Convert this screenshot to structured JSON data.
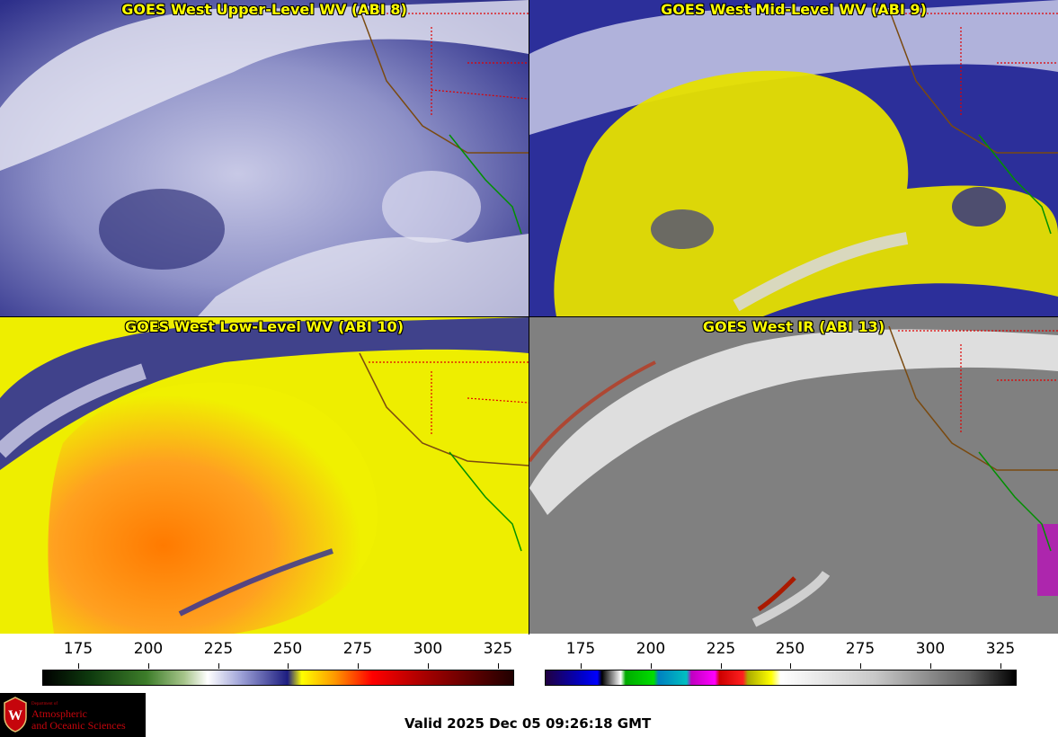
{
  "panels": [
    {
      "title": "GOES West Upper-Level WV (ABI 8)"
    },
    {
      "title": "GOES West Mid-Level WV (ABI 9)"
    },
    {
      "title": "GOES West Low-Level WV (ABI 10)"
    },
    {
      "title": "GOES West IR (ABI 13)"
    }
  ],
  "colorbars": {
    "wv": {
      "ticks": [
        "175",
        "200",
        "225",
        "250",
        "275",
        "300",
        "325"
      ]
    },
    "ir": {
      "ticks": [
        "175",
        "200",
        "225",
        "250",
        "275",
        "300",
        "325"
      ]
    }
  },
  "logo": {
    "dept_line": "Department of",
    "name_line1": "Atmospheric",
    "name_line2": "and Oceanic Sciences",
    "seal_letter": "W"
  },
  "valid_time": "Valid 2025 Dec 05 09:26:18 GMT"
}
